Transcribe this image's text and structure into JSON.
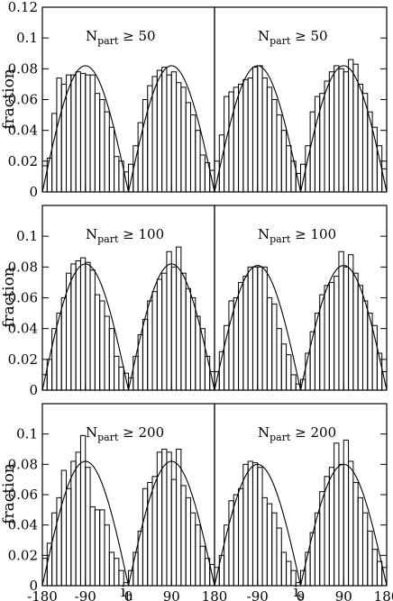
{
  "chart_data": {
    "type": "bar",
    "layout": "3x2 grid of histograms with fitted curves",
    "xlim": [
      -180,
      180
    ],
    "ylim": [
      0,
      0.12
    ],
    "bin_width": 10,
    "x_ticks": [
      -180,
      -90,
      0,
      90,
      180
    ],
    "x_tick_labels": [
      "-180",
      "-90",
      "0",
      "90",
      "180"
    ],
    "y_ticks": [
      0,
      0.02,
      0.04,
      0.06,
      0.08,
      0.1,
      0.12
    ],
    "y_tick_labels": [
      "0",
      "0.02",
      "0.04",
      "0.06",
      "0.08",
      "0.1",
      "0.12"
    ],
    "ylabel": "fraction",
    "xlabels": {
      "left": {
        "main": "i",
        "sub": "h"
      },
      "right": {
        "main": "i",
        "sub": "s"
      }
    },
    "grid": false,
    "panels": [
      {
        "row": 0,
        "col": 0,
        "annotation": {
          "pre": "N",
          "sub": "part",
          "post": " ≥ 50"
        },
        "curve_amplitude": 0.082,
        "bins_x": [
          -175,
          -165,
          -155,
          -145,
          -135,
          -125,
          -115,
          -105,
          -95,
          -85,
          -75,
          -65,
          -55,
          -45,
          -35,
          -25,
          -15,
          -5,
          5,
          15,
          25,
          35,
          45,
          55,
          65,
          75,
          85,
          95,
          105,
          115,
          125,
          135,
          145,
          155,
          165,
          175
        ],
        "values": [
          0.017,
          0.022,
          0.051,
          0.074,
          0.07,
          0.076,
          0.076,
          0.078,
          0.077,
          0.076,
          0.076,
          0.064,
          0.06,
          0.052,
          0.042,
          0.023,
          0.02,
          0.013,
          0.018,
          0.03,
          0.045,
          0.06,
          0.069,
          0.075,
          0.079,
          0.081,
          0.076,
          0.078,
          0.071,
          0.068,
          0.058,
          0.05,
          0.04,
          0.024,
          0.019,
          0.014
        ]
      },
      {
        "row": 0,
        "col": 1,
        "annotation": {
          "pre": "N",
          "sub": "part",
          "post": " ≥ 50"
        },
        "curve_amplitude": 0.082,
        "bins_x": [
          -175,
          -165,
          -155,
          -145,
          -135,
          -125,
          -115,
          -105,
          -95,
          -85,
          -75,
          -65,
          -55,
          -45,
          -35,
          -25,
          -15,
          -5,
          5,
          15,
          25,
          35,
          45,
          55,
          65,
          75,
          85,
          95,
          105,
          115,
          125,
          135,
          145,
          155,
          165,
          175
        ],
        "values": [
          0.02,
          0.037,
          0.062,
          0.065,
          0.068,
          0.07,
          0.073,
          0.074,
          0.081,
          0.082,
          0.074,
          0.068,
          0.06,
          0.05,
          0.04,
          0.03,
          0.02,
          0.012,
          0.018,
          0.03,
          0.052,
          0.062,
          0.064,
          0.072,
          0.078,
          0.082,
          0.08,
          0.078,
          0.086,
          0.083,
          0.07,
          0.064,
          0.052,
          0.042,
          0.03,
          0.015
        ]
      },
      {
        "row": 1,
        "col": 0,
        "annotation": {
          "pre": "N",
          "sub": "part",
          "post": " ≥ 100"
        },
        "curve_amplitude": 0.082,
        "bins_x": [
          -175,
          -165,
          -155,
          -145,
          -135,
          -125,
          -115,
          -105,
          -95,
          -85,
          -75,
          -65,
          -55,
          -45,
          -35,
          -25,
          -15,
          -5,
          5,
          15,
          25,
          35,
          45,
          55,
          65,
          75,
          85,
          95,
          105,
          115,
          125,
          135,
          145,
          155,
          165,
          175
        ],
        "values": [
          0.01,
          0.02,
          0.04,
          0.05,
          0.06,
          0.076,
          0.082,
          0.084,
          0.086,
          0.083,
          0.078,
          0.062,
          0.058,
          0.048,
          0.04,
          0.022,
          0.015,
          0.011,
          0.008,
          0.022,
          0.036,
          0.046,
          0.058,
          0.064,
          0.072,
          0.076,
          0.09,
          0.08,
          0.093,
          0.076,
          0.066,
          0.06,
          0.048,
          0.04,
          0.022,
          0.012
        ]
      },
      {
        "row": 1,
        "col": 1,
        "annotation": {
          "pre": "N",
          "sub": "part",
          "post": " ≥ 100"
        },
        "curve_amplitude": 0.081,
        "bins_x": [
          -175,
          -165,
          -155,
          -145,
          -135,
          -125,
          -115,
          -105,
          -95,
          -85,
          -75,
          -65,
          -55,
          -45,
          -35,
          -25,
          -15,
          -5,
          5,
          15,
          25,
          35,
          45,
          55,
          65,
          75,
          85,
          95,
          105,
          115,
          125,
          135,
          145,
          155,
          165,
          175
        ],
        "values": [
          0.012,
          0.025,
          0.042,
          0.058,
          0.06,
          0.07,
          0.074,
          0.08,
          0.08,
          0.08,
          0.08,
          0.06,
          0.056,
          0.04,
          0.03,
          0.023,
          0.01,
          0.004,
          0.007,
          0.024,
          0.038,
          0.05,
          0.062,
          0.068,
          0.07,
          0.074,
          0.09,
          0.08,
          0.088,
          0.076,
          0.068,
          0.058,
          0.05,
          0.042,
          0.024,
          0.012
        ]
      },
      {
        "row": 2,
        "col": 0,
        "annotation": {
          "pre": "N",
          "sub": "part",
          "post": " ≥ 200"
        },
        "curve_amplitude": 0.082,
        "bins_x": [
          -175,
          -165,
          -155,
          -145,
          -135,
          -125,
          -115,
          -105,
          -95,
          -85,
          -75,
          -65,
          -55,
          -45,
          -35,
          -25,
          -15,
          -5,
          5,
          15,
          25,
          35,
          45,
          55,
          65,
          75,
          85,
          95,
          105,
          115,
          125,
          135,
          145,
          155,
          165,
          175
        ],
        "values": [
          0.018,
          0.028,
          0.048,
          0.058,
          0.076,
          0.064,
          0.082,
          0.088,
          0.099,
          0.078,
          0.052,
          0.05,
          0.05,
          0.04,
          0.022,
          0.018,
          0.01,
          0.002,
          0.01,
          0.022,
          0.036,
          0.064,
          0.068,
          0.072,
          0.088,
          0.09,
          0.088,
          0.07,
          0.09,
          0.066,
          0.058,
          0.048,
          0.04,
          0.026,
          0.018,
          0.014
        ]
      },
      {
        "row": 2,
        "col": 1,
        "annotation": {
          "pre": "N",
          "sub": "part",
          "post": " ≥ 200"
        },
        "curve_amplitude": 0.08,
        "bins_x": [
          -175,
          -165,
          -155,
          -145,
          -135,
          -125,
          -115,
          -105,
          -95,
          -85,
          -75,
          -65,
          -55,
          -45,
          -35,
          -25,
          -15,
          -5,
          5,
          15,
          25,
          35,
          45,
          55,
          65,
          75,
          85,
          95,
          105,
          115,
          125,
          135,
          145,
          155,
          165,
          175
        ],
        "values": [
          0.012,
          0.02,
          0.04,
          0.056,
          0.06,
          0.064,
          0.08,
          0.082,
          0.081,
          0.078,
          0.058,
          0.054,
          0.048,
          0.038,
          0.022,
          0.016,
          0.01,
          0.002,
          0.01,
          0.022,
          0.035,
          0.048,
          0.062,
          0.072,
          0.078,
          0.094,
          0.08,
          0.096,
          0.082,
          0.068,
          0.058,
          0.048,
          0.036,
          0.024,
          0.016,
          0.012
        ]
      }
    ]
  }
}
